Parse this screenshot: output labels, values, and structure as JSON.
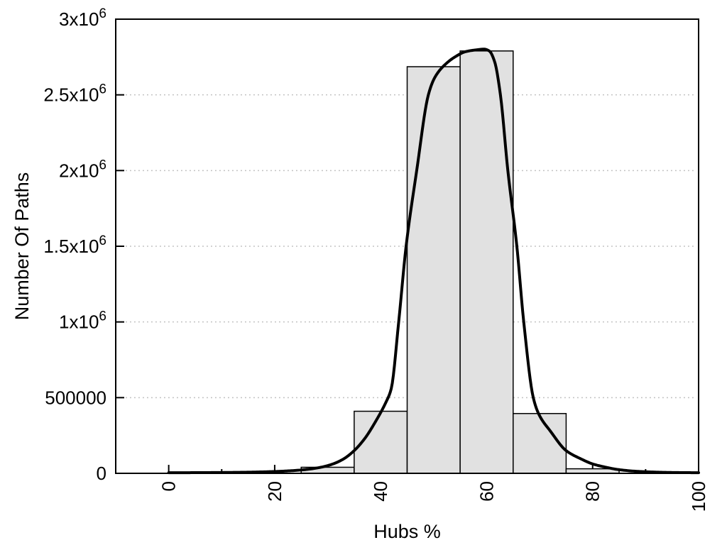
{
  "chart_data": {
    "type": "bar",
    "subtype": "histogram-with-density-curve",
    "title": "",
    "xlabel": "Hubs %",
    "ylabel": "Number Of Paths",
    "xlim": [
      -10,
      100
    ],
    "ylim": [
      0,
      3000000
    ],
    "grid": "y-major-dotted",
    "legend": "none",
    "x_major_ticks": [
      {
        "value": 0,
        "label": "0"
      },
      {
        "value": 20,
        "label": "20"
      },
      {
        "value": 40,
        "label": "40"
      },
      {
        "value": 60,
        "label": "60"
      },
      {
        "value": 80,
        "label": "80"
      },
      {
        "value": 100,
        "label": "100"
      }
    ],
    "x_minor_ticks": [
      10,
      30,
      50,
      70,
      90
    ],
    "y_ticks": [
      {
        "value": 0,
        "label": "0",
        "exp": ""
      },
      {
        "value": 500000,
        "label": "500000",
        "exp": ""
      },
      {
        "value": 1000000,
        "label": "1x10",
        "exp": "6"
      },
      {
        "value": 1500000,
        "label": "1.5x10",
        "exp": "6"
      },
      {
        "value": 2000000,
        "label": "2x10",
        "exp": "6"
      },
      {
        "value": 2500000,
        "label": "2.5x10",
        "exp": "6"
      },
      {
        "value": 3000000,
        "label": "3x10",
        "exp": "6"
      }
    ],
    "bars": [
      {
        "from": 25,
        "to": 35,
        "value": 40000
      },
      {
        "from": 35,
        "to": 45,
        "value": 410000
      },
      {
        "from": 45,
        "to": 55,
        "value": 2686000
      },
      {
        "from": 55,
        "to": 65,
        "value": 2790000
      },
      {
        "from": 65,
        "to": 75,
        "value": 395000
      },
      {
        "from": 75,
        "to": 85,
        "value": 30000
      }
    ],
    "curve_points": [
      [
        0,
        4000
      ],
      [
        5,
        4500
      ],
      [
        10,
        5500
      ],
      [
        15,
        7500
      ],
      [
        20,
        12000
      ],
      [
        23,
        17000
      ],
      [
        25,
        22000
      ],
      [
        27,
        30000
      ],
      [
        29,
        42000
      ],
      [
        31,
        62000
      ],
      [
        33,
        95000
      ],
      [
        35,
        150000
      ],
      [
        37,
        230000
      ],
      [
        39,
        340000
      ],
      [
        41,
        470000
      ],
      [
        42,
        560000
      ],
      [
        43.4,
        1000000
      ],
      [
        44.8,
        1500000
      ],
      [
        46.8,
        2000000
      ],
      [
        49,
        2500000
      ],
      [
        50.3,
        2620000
      ],
      [
        52,
        2695000
      ],
      [
        54,
        2750000
      ],
      [
        56,
        2785000
      ],
      [
        58,
        2797000
      ],
      [
        59.5,
        2802000
      ],
      [
        60.5,
        2790000
      ],
      [
        61.5,
        2720000
      ],
      [
        62.6,
        2500000
      ],
      [
        64,
        2000000
      ],
      [
        65.7,
        1500000
      ],
      [
        67,
        1000000
      ],
      [
        68.8,
        500000
      ],
      [
        70,
        380000
      ],
      [
        72,
        280000
      ],
      [
        75,
        150000
      ],
      [
        78,
        92000
      ],
      [
        80,
        62000
      ],
      [
        82,
        44000
      ],
      [
        85,
        24000
      ],
      [
        88,
        14000
      ],
      [
        91,
        9000
      ],
      [
        95,
        5500
      ],
      [
        100,
        4000
      ]
    ],
    "colors": {
      "background": "#ffffff",
      "bar_fill": "#e1e1e1",
      "bar_border": "#000000",
      "curve": "#000000",
      "grid": "#bdbdbd",
      "axis": "#000000",
      "text": "#000000"
    }
  }
}
